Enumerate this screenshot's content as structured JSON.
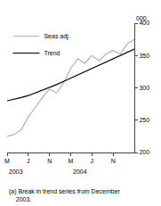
{
  "chart_data": {
    "type": "line",
    "categories": [
      "M",
      null,
      null,
      "J",
      null,
      null,
      "N",
      null,
      null,
      "M",
      null,
      null,
      "J",
      null,
      null,
      "N",
      null,
      null,
      null
    ],
    "series": [
      {
        "name": "Seas adj.",
        "color": "#b0b0b0",
        "values": [
          225,
          228,
          235,
          255,
          270,
          285,
          298,
          292,
          308,
          330,
          345,
          338,
          350,
          342,
          352,
          358,
          352,
          368,
          375
        ]
      },
      {
        "name": "Trend",
        "color": "#000000",
        "values": [
          280,
          282,
          285,
          288,
          292,
          296,
          300,
          305,
          310,
          315,
          320,
          325,
          330,
          335,
          340,
          345,
          350,
          355,
          360
        ]
      }
    ],
    "ylim": [
      200,
      400
    ],
    "yticks": [
      200,
      250,
      300,
      350,
      400
    ],
    "ylabel": "000",
    "annotations": [
      {
        "text": "2003",
        "x": 0
      },
      {
        "text": "2004",
        "x": 9
      }
    ],
    "footnote": "(a) Break in trend series from December\n    2003.",
    "legend": "upper left",
    "grid": false
  }
}
